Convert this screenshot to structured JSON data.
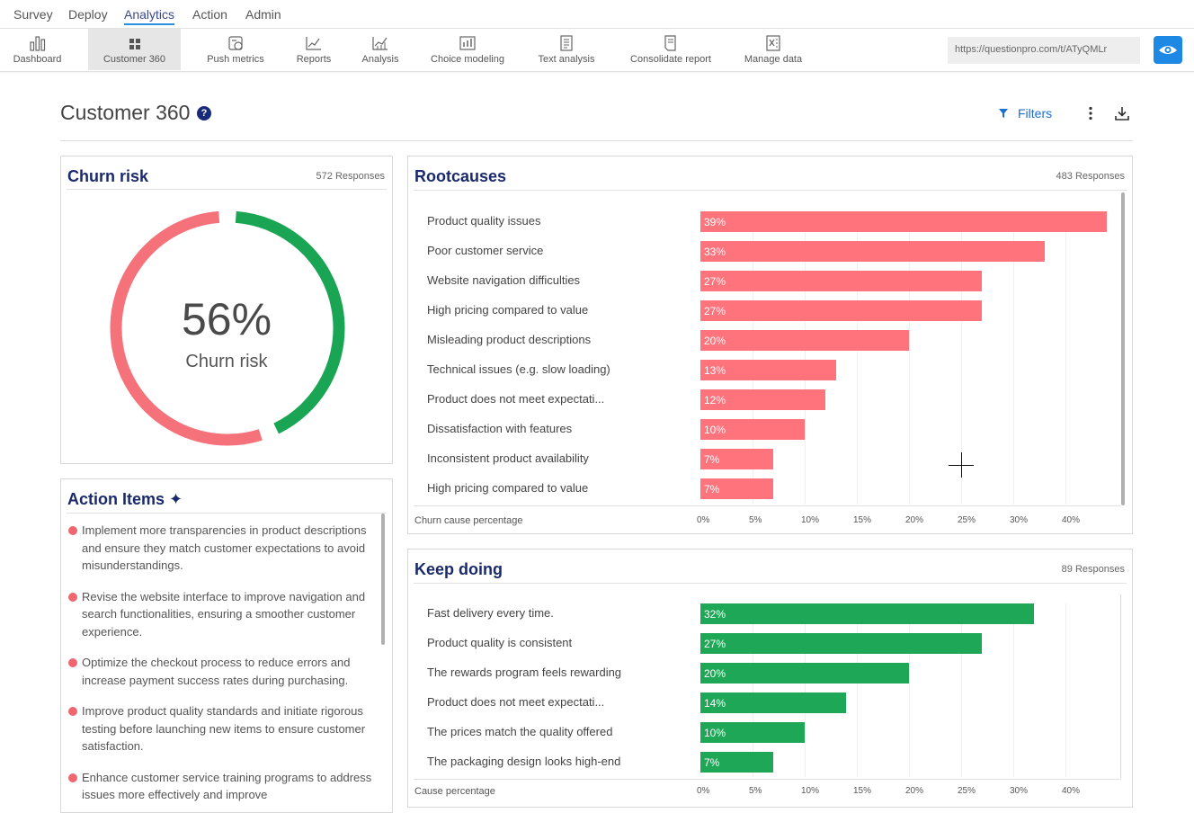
{
  "topnav": {
    "items": [
      {
        "label": "Survey",
        "active": false
      },
      {
        "label": "Deploy",
        "active": false
      },
      {
        "label": "Analytics",
        "active": true
      },
      {
        "label": "Action",
        "active": false
      },
      {
        "label": "Admin",
        "active": false
      }
    ]
  },
  "toolbar": {
    "items": [
      {
        "label": "Dashboard",
        "icon": "bar-chart-icon",
        "active": false
      },
      {
        "label": "Customer 360",
        "icon": "grid-icon",
        "active": true
      },
      {
        "label": "Push metrics",
        "icon": "push-metrics-icon",
        "active": false
      },
      {
        "label": "Reports",
        "icon": "line-chart-icon",
        "active": false
      },
      {
        "label": "Analysis",
        "icon": "analysis-icon",
        "active": false
      },
      {
        "label": "Choice modeling",
        "icon": "choice-modeling-icon",
        "active": false
      },
      {
        "label": "Text analysis",
        "icon": "text-analysis-icon",
        "active": false
      },
      {
        "label": "Consolidate report",
        "icon": "consolidate-report-icon",
        "active": false
      },
      {
        "label": "Manage data",
        "icon": "excel-icon",
        "active": false
      }
    ],
    "url": "https://questionpro.com/t/ATyQMLr",
    "eye_icon": "eye-icon"
  },
  "header": {
    "title": "Customer 360",
    "help_icon": "?",
    "filters_label": "Filters"
  },
  "churn": {
    "title": "Churn risk",
    "responses": "572 Responses",
    "value": "56%",
    "label": "Churn risk",
    "percent": 56,
    "colors": {
      "risk": "#f5727b",
      "retained": "#1aa555"
    }
  },
  "actions": {
    "title": "Action Items ✦",
    "items": [
      "Implement more transparencies in product descriptions and ensure they match customer expectations to avoid misunderstandings.",
      "Revise the website interface to improve navigation and search functionalities, ensuring a smoother customer experience.",
      "Optimize the checkout process to reduce errors and increase payment success rates during purchasing.",
      "Improve product quality standards and initiate rigorous testing before launching new items to ensure customer satisfaction.",
      "Enhance customer service training programs to address issues more effectively and improve"
    ]
  },
  "chart_data": [
    {
      "type": "bar",
      "title": "Rootcauses",
      "responses": "483 Responses",
      "categories": [
        "Product quality issues",
        "Poor customer service",
        "Website navigation difficulties",
        "High pricing compared to value",
        "Misleading product descriptions",
        "Technical issues (e.g. slow loading)",
        "Product does not meet expectati...",
        "Dissatisfaction with features",
        "Inconsistent product availability",
        "High pricing compared to value"
      ],
      "values": [
        39,
        33,
        27,
        27,
        20,
        13,
        12,
        10,
        7,
        7
      ],
      "labels": [
        "39%",
        "33%",
        "27%",
        "27%",
        "20%",
        "13%",
        "12%",
        "10%",
        "7%",
        "7%"
      ],
      "xlabel": "Churn cause percentage",
      "xticks": [
        "0%",
        "5%",
        "10%",
        "15%",
        "20%",
        "25%",
        "30%",
        "40%"
      ],
      "color": "#ff737d",
      "orientation": "horizontal"
    },
    {
      "type": "bar",
      "title": "Keep doing",
      "responses": "89 Responses",
      "categories": [
        "Fast delivery every time.",
        "Product quality is consistent",
        "The rewards program feels rewarding",
        "Product does not meet expectati...",
        "The prices match the quality offered",
        "The packaging design looks high-end"
      ],
      "values": [
        32,
        27,
        20,
        14,
        10,
        7
      ],
      "labels": [
        "32%",
        "27%",
        "20%",
        "14%",
        "10%",
        "7%"
      ],
      "xlabel": "Cause percentage",
      "xticks": [
        "0%",
        "5%",
        "10%",
        "15%",
        "20%",
        "25%",
        "30%",
        "40%"
      ],
      "color": "#1ea756",
      "orientation": "horizontal"
    }
  ]
}
